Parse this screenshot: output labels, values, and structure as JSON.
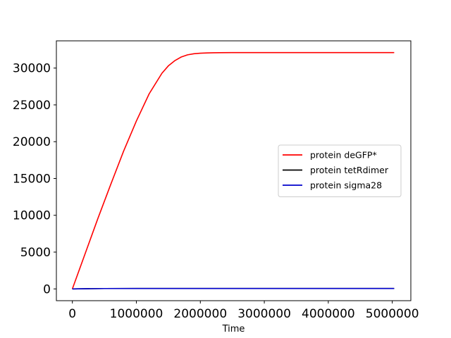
{
  "chart_data": {
    "type": "line",
    "title": "",
    "xlabel": "Time",
    "ylabel": "",
    "xlim": [
      -250000,
      5290000
    ],
    "ylim": [
      -1600,
      33700
    ],
    "x_ticks": [
      0,
      1000000,
      2000000,
      3000000,
      4000000,
      5000000
    ],
    "x_tick_labels": [
      "0",
      "1000000",
      "2000000",
      "3000000",
      "4000000",
      "5000000"
    ],
    "y_ticks": [
      0,
      5000,
      10000,
      15000,
      20000,
      25000,
      30000
    ],
    "y_tick_labels": [
      "0",
      "5000",
      "10000",
      "15000",
      "20000",
      "25000",
      "30000"
    ],
    "grid": false,
    "legend_position": "center-right",
    "series": [
      {
        "name": "protein deGFP*",
        "color": "#ff0000",
        "x": [
          0,
          200000,
          400000,
          600000,
          800000,
          1000000,
          1200000,
          1400000,
          1500000,
          1600000,
          1700000,
          1800000,
          1900000,
          2000000,
          2100000,
          2200000,
          2300000,
          2500000,
          3000000,
          4000000,
          5030000
        ],
        "y": [
          0,
          4800,
          9600,
          14200,
          18700,
          22800,
          26500,
          29300,
          30300,
          31000,
          31500,
          31800,
          31950,
          32020,
          32060,
          32080,
          32090,
          32100,
          32100,
          32100,
          32100
        ]
      },
      {
        "name": "protein tetRdimer",
        "color": "#000000",
        "x": [
          0,
          500000,
          1000000,
          2000000,
          3000000,
          4000000,
          5030000
        ],
        "y": [
          0,
          50,
          60,
          60,
          60,
          60,
          60
        ]
      },
      {
        "name": "protein sigma28",
        "color": "#0000cc",
        "x": [
          0,
          500000,
          1000000,
          2000000,
          3000000,
          4000000,
          5030000
        ],
        "y": [
          0,
          50,
          60,
          60,
          60,
          60,
          60
        ]
      }
    ]
  }
}
